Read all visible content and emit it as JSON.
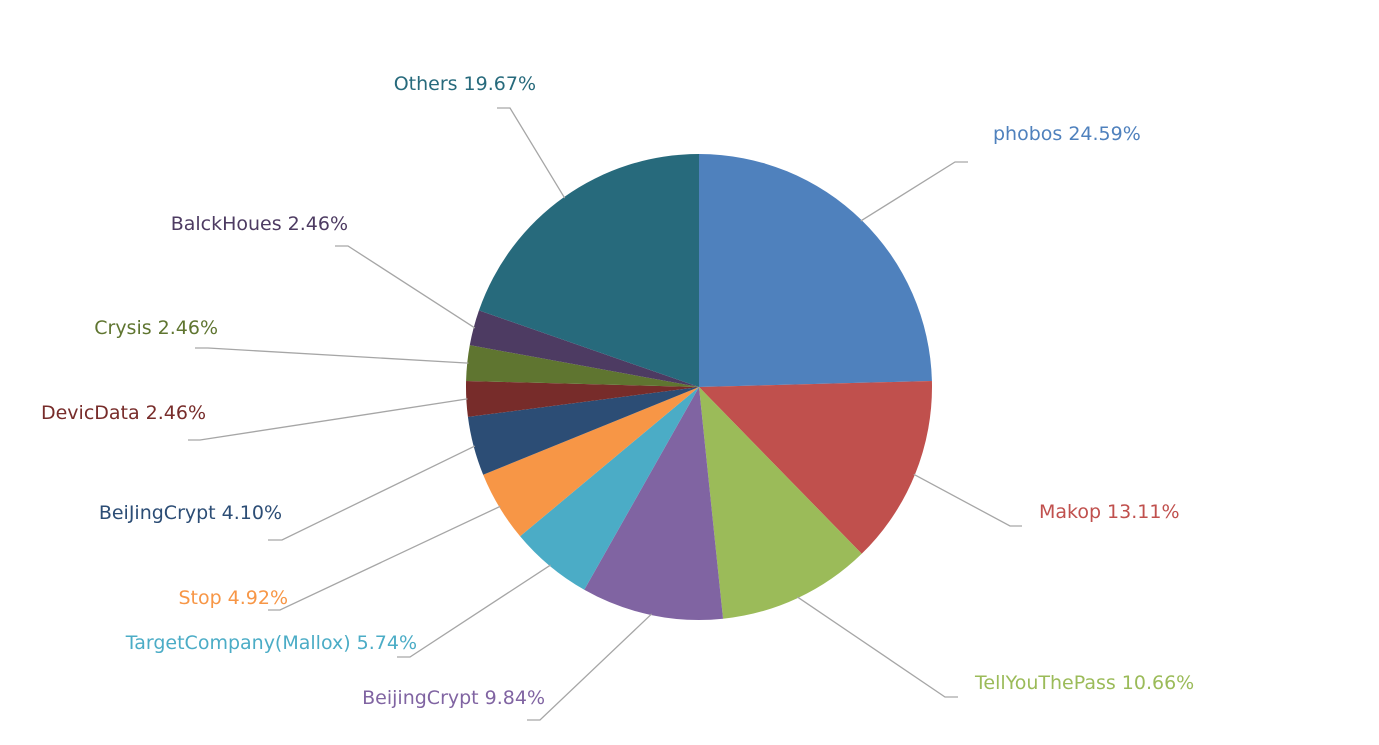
{
  "chart_data": {
    "type": "pie",
    "categories": [
      "phobos",
      "Makop",
      "TellYouThePass",
      "BeijingCrypt",
      "TargetCompany(Mallox)",
      "Stop",
      "BeiJingCrypt",
      "DevicData",
      "Crysis",
      "BalckHoues",
      "Others"
    ],
    "values": [
      24.59,
      13.11,
      10.66,
      9.84,
      5.74,
      4.92,
      4.1,
      2.46,
      2.46,
      2.46,
      19.67
    ],
    "value_labels": [
      "24.59%",
      "13.11%",
      "10.66%",
      "9.84%",
      "5.74%",
      "4.92%",
      "4.10%",
      "2.46%",
      "2.46%",
      "2.46%",
      "19.67%"
    ],
    "colors": [
      "#4f81bd",
      "#c0504d",
      "#9bbb59",
      "#8064a2",
      "#4bacc6",
      "#f79646",
      "#2c4d75",
      "#772c2a",
      "#5f7530",
      "#4d3b62",
      "#276a7c"
    ]
  }
}
